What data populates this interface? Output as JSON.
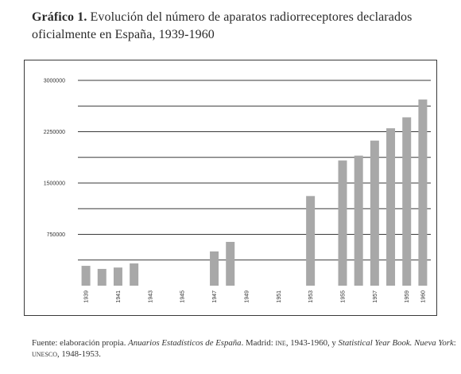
{
  "title": {
    "bold": "Gráfico 1.",
    "text": "Evolución del número de aparatos radiorreceptores declarados oficialmente en España, 1939-1960"
  },
  "source": {
    "p1": "Fuente: elaboración propia. ",
    "i1": "Anuarios Estadísticos de España",
    "p2": ". Madrid: ",
    "sc1": "ine",
    "p3": ", 1943-1960, y ",
    "i2": "Statistical Year Book. Nueva York",
    "p4": ": ",
    "sc2": "unesco",
    "p5": ", 1948-1953."
  },
  "chart_data": {
    "type": "bar",
    "title": "",
    "xlabel": "",
    "ylabel": "",
    "ylim": [
      0,
      3000000
    ],
    "yticks": [
      750000,
      1500000,
      2250000,
      3000000
    ],
    "ytick_labels": [
      "750000",
      "1500000",
      "2250000",
      "3000000"
    ],
    "grid": true,
    "categories": [
      "1939",
      "1940",
      "1941",
      "1942",
      "1943",
      "1944",
      "1945",
      "1946",
      "1947",
      "1948",
      "1949",
      "1950",
      "1951",
      "1952",
      "1953",
      "1954",
      "1955",
      "1956",
      "1957",
      "1958",
      "1959",
      "1960"
    ],
    "xtick_labels": [
      "1939",
      "1941",
      "1943",
      "1945",
      "1947",
      "1949",
      "1951",
      "1953",
      "1955",
      "1957",
      "1959",
      "1960"
    ],
    "values": [
      290000,
      245000,
      265000,
      325000,
      null,
      null,
      null,
      null,
      500000,
      640000,
      null,
      null,
      null,
      null,
      1310000,
      null,
      1830000,
      1900000,
      2120000,
      2300000,
      2460000,
      2720000
    ],
    "bar_color": "#a8a8a8",
    "grid_color": "#3a3a3a"
  }
}
